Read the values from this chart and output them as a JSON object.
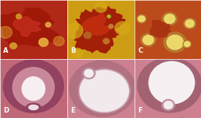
{
  "figsize": [
    2.55,
    1.5
  ],
  "dpi": 100,
  "nrows": 2,
  "ncols": 3,
  "panels": [
    {
      "idx": 0,
      "bg_color": "#b02818",
      "label": "A",
      "label_color": "white"
    },
    {
      "idx": 1,
      "bg_color": "#c89010",
      "label": "B",
      "label_color": "white"
    },
    {
      "idx": 2,
      "bg_color": "#c05820",
      "label": "C",
      "label_color": "white"
    },
    {
      "idx": 3,
      "bg_color": "#c06878",
      "label": "D",
      "label_color": "white"
    },
    {
      "idx": 4,
      "bg_color": "#cc8898",
      "label": "E",
      "label_color": "white"
    },
    {
      "idx": 5,
      "bg_color": "#cc8898",
      "label": "F",
      "label_color": "white"
    }
  ]
}
